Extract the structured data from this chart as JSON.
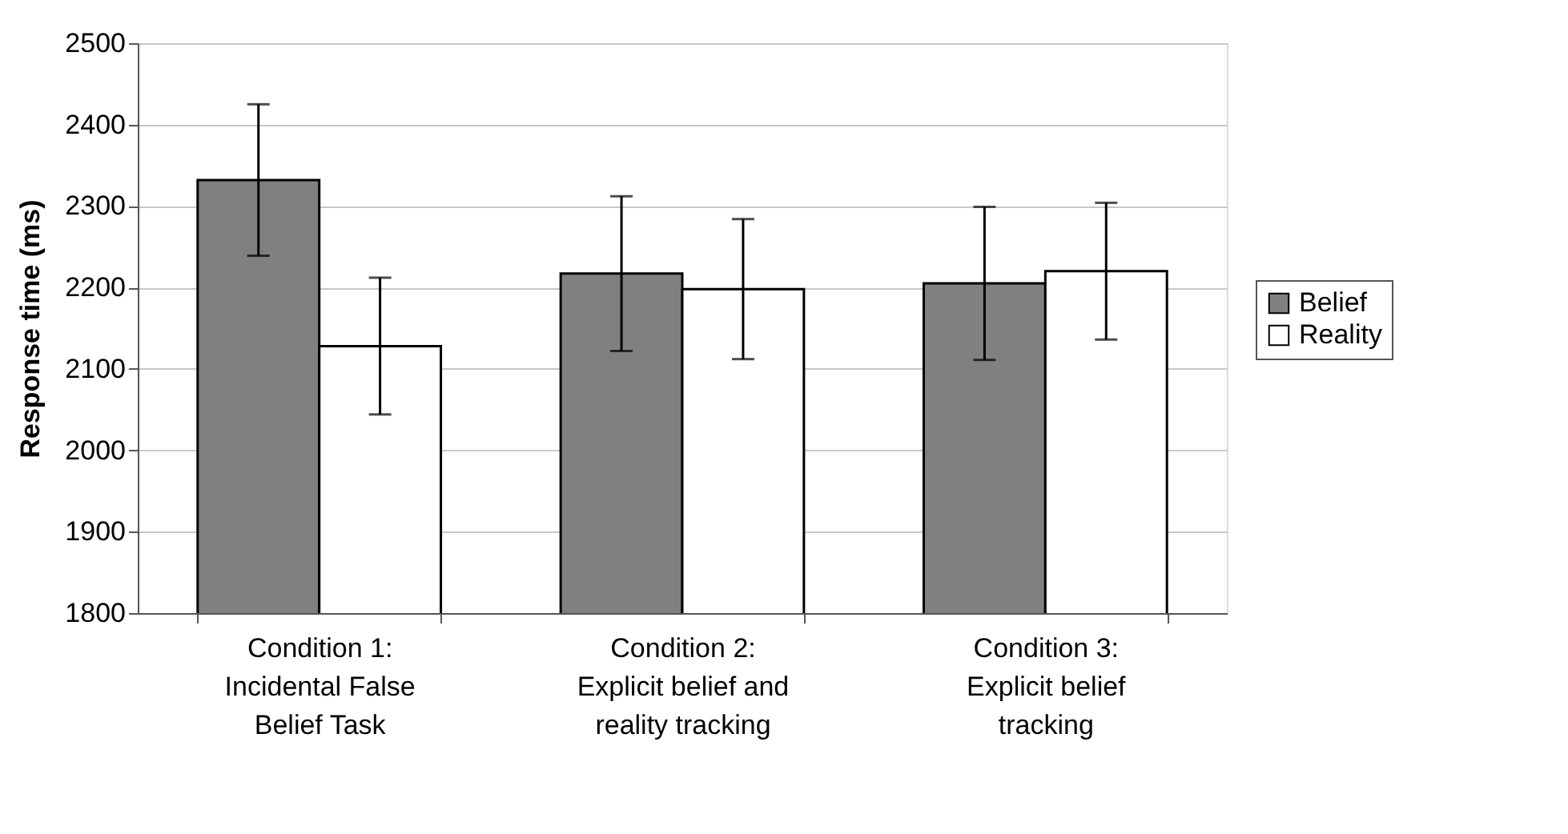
{
  "chart_data": {
    "type": "bar",
    "ylabel": "Response time (ms)",
    "categories": [
      "Condition 1: Incidental False Belief Task",
      "Condition 2: Explicit belief and reality tracking",
      "Condition 3: Explicit belief tracking"
    ],
    "series": [
      {
        "name": "Belief",
        "color": "#808080",
        "values": [
          2332,
          2217,
          2205
        ],
        "errors": [
          93,
          95,
          94
        ]
      },
      {
        "name": "Reality",
        "color": "#ffffff",
        "values": [
          2128,
          2198,
          2220
        ],
        "errors": [
          84,
          86,
          84
        ]
      }
    ],
    "ylim": [
      1800,
      2500
    ],
    "yticks": [
      1800,
      1900,
      2000,
      2100,
      2200,
      2300,
      2400,
      2500
    ],
    "grid": "y",
    "legend": "right"
  }
}
